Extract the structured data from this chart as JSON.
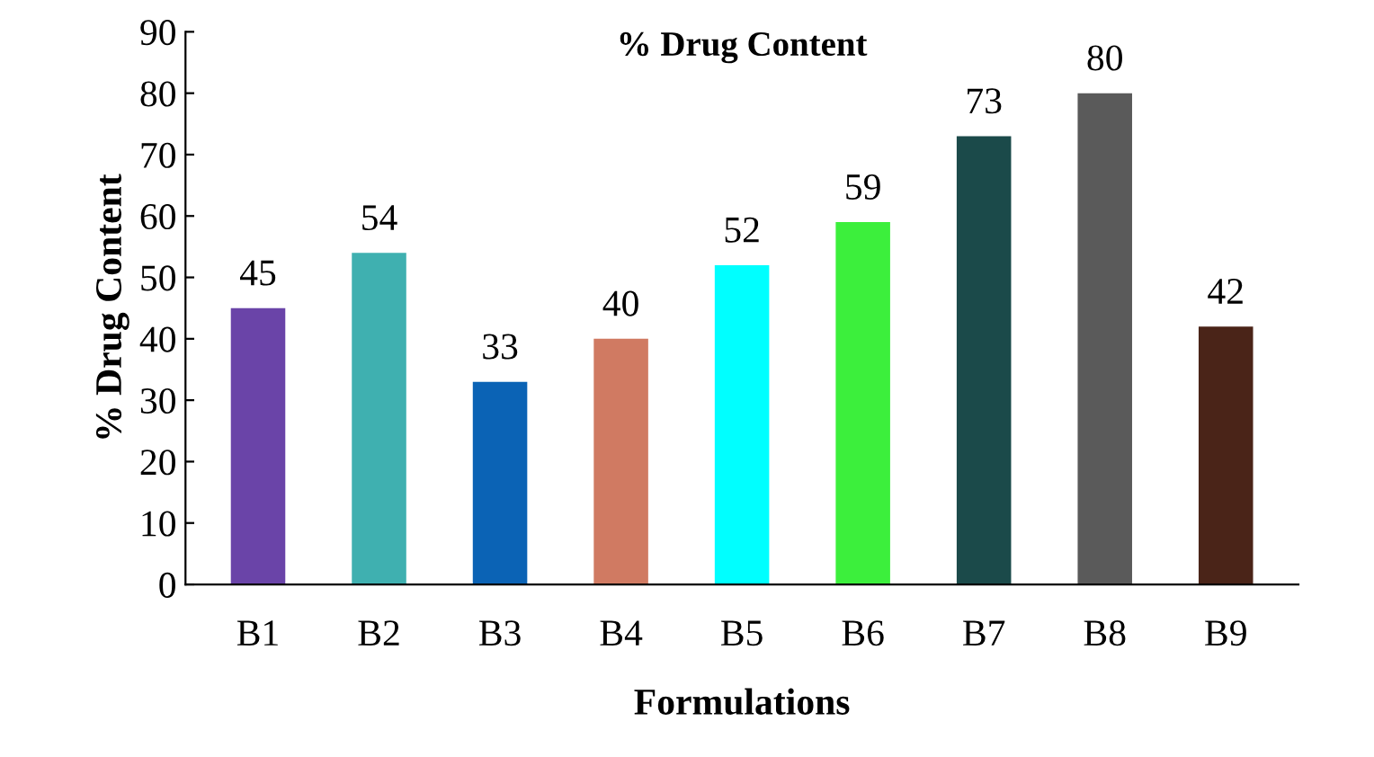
{
  "chart_data": {
    "type": "bar",
    "title": "% Drug Content",
    "xlabel": "Formulations",
    "ylabel": "% Drug Content",
    "categories": [
      "B1",
      "B2",
      "B3",
      "B4",
      "B5",
      "B6",
      "B7",
      "B8",
      "B9"
    ],
    "values": [
      45,
      54,
      33,
      40,
      52,
      59,
      73,
      80,
      42
    ],
    "colors": [
      "#6a44a8",
      "#3fb0b0",
      "#0b63b5",
      "#d07a62",
      "#00ffff",
      "#3cef3c",
      "#1b4a4a",
      "#5a5a5a",
      "#4a2418"
    ],
    "ylim": [
      0,
      90
    ],
    "yticks": [
      0,
      10,
      20,
      30,
      40,
      50,
      60,
      70,
      80,
      90
    ],
    "grid": false,
    "data_labels": true
  }
}
